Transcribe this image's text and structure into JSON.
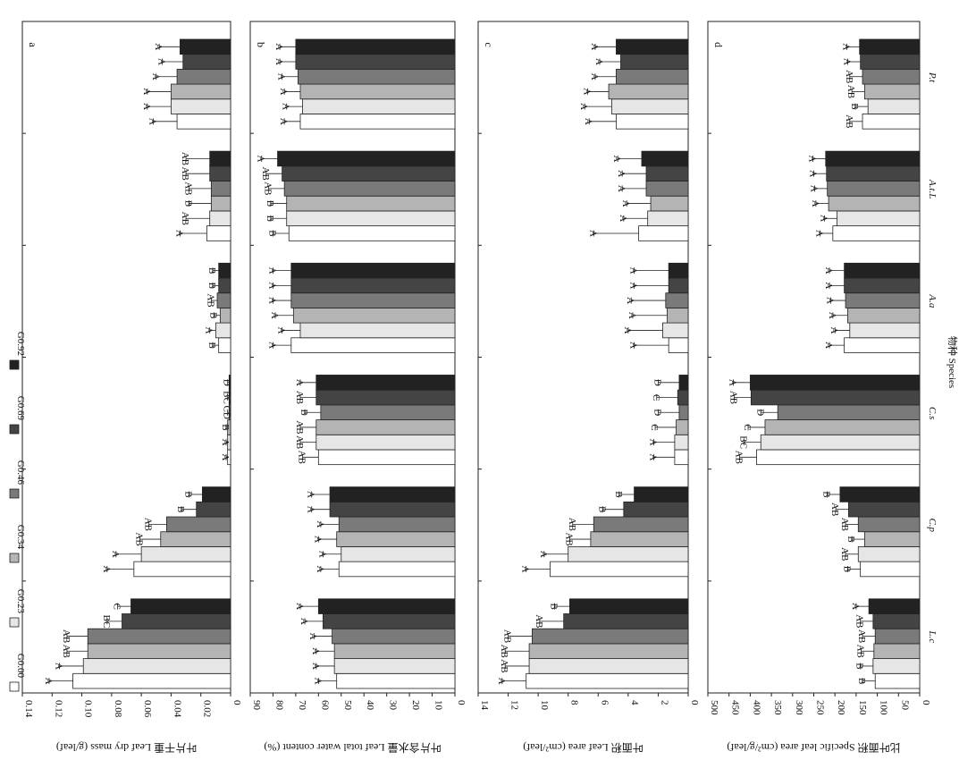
{
  "legend": {
    "entries": [
      {
        "name": "G0.00",
        "color": "#ffffff"
      },
      {
        "name": "G0.23",
        "color": "#e6e6e6"
      },
      {
        "name": "G0.34",
        "color": "#b4b4b4"
      },
      {
        "name": "G0.46",
        "color": "#7a7a7a"
      },
      {
        "name": "G0.69",
        "color": "#444444"
      },
      {
        "name": "G0.92",
        "color": "#222222"
      }
    ]
  },
  "x_axis_label": "物种 Species",
  "chart_data": [
    {
      "type": "bar",
      "panel_label": "a",
      "ylabel": "叶片干重 Leaf dry mass (g/leaf)",
      "ylim": [
        0,
        0.14
      ],
      "ticks": [
        0.14,
        0.12,
        0.1,
        0.08,
        0.06,
        0.04,
        0.02,
        0
      ],
      "tick_labels": [
        "0.14",
        "0.12",
        "0.10",
        "0.08",
        "0.06",
        "0.04",
        "0.02",
        "0"
      ],
      "categories": [
        "L.c",
        "C.p",
        "C.s",
        "A.a",
        "A.t.L",
        "P.t"
      ],
      "series": [
        {
          "name": "G0.00",
          "values": [
            0.106,
            0.065,
            0.002,
            0.008,
            0.016,
            0.036
          ],
          "errors": [
            0.016,
            0.018,
            0.001,
            0.004,
            0.018,
            0.016
          ],
          "letters": [
            "A",
            "A",
            "A",
            "B",
            "A",
            "A"
          ]
        },
        {
          "name": "G0.23",
          "values": [
            0.099,
            0.06,
            0.002,
            0.01,
            0.014,
            0.04
          ],
          "errors": [
            0.016,
            0.017,
            0.001,
            0.004,
            0.016,
            0.016
          ],
          "letters": [
            "A",
            "A",
            "A",
            "A",
            "AB",
            "A"
          ]
        },
        {
          "name": "G0.34",
          "values": [
            0.096,
            0.047,
            0.002,
            0.007,
            0.013,
            0.04
          ],
          "errors": [
            0.014,
            0.014,
            0.001,
            0.004,
            0.015,
            0.016
          ],
          "letters": [
            "AB",
            "AB",
            "B",
            "B",
            "B",
            "A"
          ]
        },
        {
          "name": "G0.46",
          "values": [
            0.096,
            0.043,
            0.001,
            0.009,
            0.013,
            0.036
          ],
          "errors": [
            0.014,
            0.012,
            0.001,
            0.004,
            0.015,
            0.014
          ],
          "letters": [
            "AB",
            "AB",
            "CD",
            "AB",
            "AB",
            "A"
          ]
        },
        {
          "name": "G0.69",
          "values": [
            0.073,
            0.023,
            0.001,
            0.008,
            0.014,
            0.032
          ],
          "errors": [
            0.01,
            0.01,
            0.001,
            0.004,
            0.016,
            0.014
          ],
          "letters": [
            "BC",
            "B",
            "BC",
            "B",
            "AB",
            "A"
          ]
        },
        {
          "name": "G0.92",
          "values": [
            0.067,
            0.019,
            0.001,
            0.008,
            0.014,
            0.034
          ],
          "errors": [
            0.009,
            0.009,
            0.001,
            0.004,
            0.016,
            0.014
          ],
          "letters": [
            "C",
            "B",
            "D",
            "B",
            "AB",
            "A"
          ]
        }
      ]
    },
    {
      "type": "bar",
      "panel_label": "b",
      "ylabel": "叶片含水量 Leaf total water content (%)",
      "ylim": [
        0,
        90
      ],
      "ticks": [
        90,
        80,
        70,
        60,
        50,
        40,
        30,
        20,
        10,
        0
      ],
      "tick_labels": [
        "90",
        "80",
        "70",
        "60",
        "50",
        "40",
        "30",
        "20",
        "10",
        "0"
      ],
      "categories": [
        "L.c",
        "C.p",
        "C.s",
        "A.a",
        "A.t.L",
        "P.t"
      ],
      "series": [
        {
          "name": "G0.00",
          "values": [
            52,
            51,
            60,
            72,
            73,
            68
          ],
          "errors": [
            8,
            8,
            7,
            8,
            7,
            7
          ],
          "letters": [
            "A",
            "A",
            "AB",
            "A",
            "B",
            "A"
          ]
        },
        {
          "name": "G0.23",
          "values": [
            53,
            50,
            61,
            68,
            74,
            67
          ],
          "errors": [
            8,
            8,
            7,
            8,
            7,
            7
          ],
          "letters": [
            "A",
            "A",
            "AB",
            "A",
            "B",
            "A"
          ]
        },
        {
          "name": "G0.34",
          "values": [
            53,
            52,
            61,
            71,
            74,
            68
          ],
          "errors": [
            8,
            8,
            7,
            8,
            7,
            7
          ],
          "letters": [
            "A",
            "A",
            "AB",
            "A",
            "B",
            "A"
          ]
        },
        {
          "name": "G0.46",
          "values": [
            54,
            51,
            59,
            72,
            75,
            69
          ],
          "errors": [
            8,
            8,
            7,
            8,
            7,
            7
          ],
          "letters": [
            "A",
            "A",
            "B",
            "A",
            "AB",
            "A"
          ]
        },
        {
          "name": "G0.69",
          "values": [
            58,
            55,
            61,
            72,
            76,
            70
          ],
          "errors": [
            8,
            8,
            7,
            8,
            7,
            7
          ],
          "letters": [
            "A",
            "A",
            "AB",
            "A",
            "AB",
            "A"
          ]
        },
        {
          "name": "G0.92",
          "values": [
            60,
            55,
            61,
            72,
            78,
            70
          ],
          "errors": [
            8,
            8,
            7,
            8,
            7,
            7
          ],
          "letters": [
            "A",
            "A",
            "A",
            "A",
            "A",
            "A"
          ]
        }
      ]
    },
    {
      "type": "bar",
      "panel_label": "c",
      "ylabel": "叶面积 Leaf area (cm²/leaf)",
      "ylim": [
        0,
        14
      ],
      "ticks": [
        14,
        12,
        10,
        8,
        6,
        4,
        2,
        0
      ],
      "tick_labels": [
        "14",
        "12",
        "10",
        "8",
        "6",
        "4",
        "2",
        "0"
      ],
      "categories": [
        "L.c",
        "C.p",
        "C.s",
        "A.a",
        "A.t.L",
        "P.t"
      ],
      "series": [
        {
          "name": "G0.00",
          "values": [
            10.8,
            9.2,
            0.9,
            1.3,
            3.3,
            4.8
          ],
          "errors": [
            1.6,
            1.6,
            1.4,
            2.3,
            3.0,
            1.8
          ],
          "letters": [
            "A",
            "A",
            "A",
            "A",
            "A",
            "A"
          ]
        },
        {
          "name": "G0.23",
          "values": [
            10.6,
            8.0,
            0.9,
            1.7,
            2.7,
            5.1
          ],
          "errors": [
            1.6,
            1.6,
            1.4,
            2.3,
            1.6,
            1.8
          ],
          "letters": [
            "AB",
            "A",
            "A",
            "A",
            "A",
            "A"
          ]
        },
        {
          "name": "G0.34",
          "values": [
            10.6,
            6.5,
            0.8,
            1.4,
            2.5,
            5.3
          ],
          "errors": [
            1.6,
            1.4,
            1.4,
            2.3,
            1.6,
            1.4
          ],
          "letters": [
            "AB",
            "AB",
            "C",
            "A",
            "A",
            "A"
          ]
        },
        {
          "name": "G0.46",
          "values": [
            10.4,
            6.3,
            0.6,
            1.5,
            2.8,
            4.8
          ],
          "errors": [
            1.6,
            1.4,
            1.4,
            2.3,
            1.6,
            1.4
          ],
          "letters": [
            "AB",
            "AB",
            "D",
            "A",
            "A",
            "A"
          ]
        },
        {
          "name": "G0.69",
          "values": [
            8.3,
            4.3,
            0.7,
            1.3,
            2.8,
            4.5
          ],
          "errors": [
            1.6,
            1.4,
            1.4,
            2.3,
            1.6,
            1.4
          ],
          "letters": [
            "AB",
            "B",
            "C",
            "A",
            "A",
            "A"
          ]
        },
        {
          "name": "G0.92",
          "values": [
            7.9,
            3.6,
            0.6,
            1.3,
            3.1,
            4.8
          ],
          "errors": [
            1.0,
            1.0,
            1.4,
            2.3,
            1.6,
            1.4
          ],
          "letters": [
            "B",
            "B",
            "D",
            "A",
            "A",
            "A"
          ]
        }
      ]
    },
    {
      "type": "bar",
      "panel_label": "d",
      "ylabel": "比叶面积 Specific leaf area (cm²/g/leaf)",
      "ylim": [
        0,
        500
      ],
      "ticks": [
        500,
        450,
        400,
        350,
        300,
        250,
        200,
        150,
        100,
        50,
        0
      ],
      "tick_labels": [
        "500",
        "450",
        "400",
        "350",
        "300",
        "250",
        "200",
        "150",
        "100",
        "50",
        "0"
      ],
      "categories": [
        "L.c",
        "C.p",
        "C.s",
        "A.a",
        "A.t.L",
        "P.t"
      ],
      "series": [
        {
          "name": "G0.00",
          "values": [
            105,
            140,
            385,
            178,
            205,
            135
          ],
          "errors": [
            30,
            30,
            40,
            35,
            30,
            30
          ],
          "letters": [
            "B",
            "B",
            "AB",
            "A",
            "A",
            "AB"
          ]
        },
        {
          "name": "G0.23",
          "values": [
            110,
            145,
            375,
            165,
            195,
            122
          ],
          "errors": [
            30,
            30,
            40,
            35,
            30,
            30
          ],
          "letters": [
            "B",
            "AB",
            "BC",
            "A",
            "A",
            "B"
          ]
        },
        {
          "name": "G0.34",
          "values": [
            108,
            130,
            365,
            170,
            215,
            130
          ],
          "errors": [
            30,
            30,
            40,
            35,
            30,
            30
          ],
          "letters": [
            "AB",
            "B",
            "C",
            "A",
            "A",
            "AB"
          ]
        },
        {
          "name": "G0.46",
          "values": [
            105,
            145,
            335,
            175,
            218,
            135
          ],
          "errors": [
            30,
            30,
            40,
            35,
            30,
            30
          ],
          "letters": [
            "AB",
            "AB",
            "D",
            "A",
            "A",
            "AB"
          ]
        },
        {
          "name": "G0.69",
          "values": [
            110,
            168,
            398,
            178,
            220,
            140
          ],
          "errors": [
            30,
            30,
            40,
            35,
            30,
            30
          ],
          "letters": [
            "AB",
            "AB",
            "AB",
            "A",
            "A",
            "A"
          ]
        },
        {
          "name": "G0.92",
          "values": [
            120,
            188,
            400,
            178,
            222,
            142
          ],
          "errors": [
            30,
            30,
            40,
            35,
            30,
            30
          ],
          "letters": [
            "A",
            "B",
            "A",
            "A",
            "A",
            "A"
          ]
        }
      ]
    }
  ]
}
